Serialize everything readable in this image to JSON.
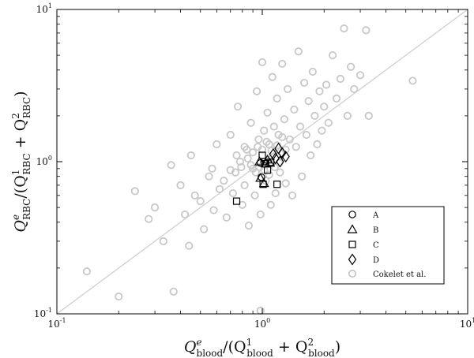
{
  "chart_data": {
    "type": "scatter",
    "x_scale": "log",
    "y_scale": "log",
    "xlim": [
      0.1,
      10
    ],
    "ylim": [
      0.1,
      10
    ],
    "grid": false,
    "legend_position": "bottom-right",
    "xlabel": {
      "main": "Q",
      "sup": "e",
      "sub": "blood",
      "rest_open": "/(Q",
      "sup1": "1",
      "sub1": "blood",
      "plus": " + Q",
      "sup2": "2",
      "sub2": "blood",
      "close": ")"
    },
    "ylabel": {
      "main": "Q",
      "sup": "e",
      "sub": "RBC",
      "rest_open": "/(Q",
      "sup1": "1",
      "sub1": "RBC",
      "plus": " + Q",
      "sup2": "2",
      "sub2": "RBC",
      "close": ")"
    },
    "x_ticks": [
      {
        "value": 0.1,
        "base": "10",
        "exp": "-1"
      },
      {
        "value": 1,
        "base": "10",
        "exp": "0"
      },
      {
        "value": 10,
        "base": "10",
        "exp": "1"
      }
    ],
    "y_ticks": [
      {
        "value": 0.1,
        "base": "10",
        "exp": "-1"
      },
      {
        "value": 1,
        "base": "10",
        "exp": "0"
      },
      {
        "value": 10,
        "base": "10",
        "exp": "1"
      }
    ],
    "reference_line": {
      "x": [
        0.1,
        10
      ],
      "y": [
        0.1,
        10
      ],
      "color": "#cfcfcf"
    },
    "series": [
      {
        "name": "A",
        "marker": "circle",
        "color": "#000000",
        "points": [
          [
            0.98,
            0.98
          ],
          [
            1.02,
            1.0
          ],
          [
            0.99,
            0.79
          ]
        ]
      },
      {
        "name": "B",
        "marker": "triangle",
        "color": "#000000",
        "points": [
          [
            0.97,
            1.0
          ],
          [
            1.04,
            0.97
          ],
          [
            1.09,
            0.98
          ],
          [
            0.98,
            0.78
          ],
          [
            1.02,
            0.72
          ],
          [
            1.06,
            1.03
          ]
        ]
      },
      {
        "name": "C",
        "marker": "square",
        "color": "#000000",
        "points": [
          [
            1.0,
            1.1
          ],
          [
            1.04,
            0.97
          ],
          [
            1.06,
            0.88
          ],
          [
            1.01,
            0.71
          ],
          [
            1.18,
            0.71
          ],
          [
            0.75,
            0.55
          ],
          [
            1.1,
            0.99
          ]
        ]
      },
      {
        "name": "D",
        "marker": "diamond",
        "color": "#000000",
        "points": [
          [
            1.2,
            1.22
          ],
          [
            1.25,
            1.14
          ],
          [
            1.3,
            1.08
          ],
          [
            1.16,
            1.05
          ],
          [
            1.22,
            1.0
          ],
          [
            1.13,
            1.12
          ]
        ]
      },
      {
        "name": "Cokelet et al.",
        "marker": "circle",
        "color": "#c8c8c8",
        "points": [
          [
            0.14,
            0.19
          ],
          [
            0.2,
            0.13
          ],
          [
            0.24,
            0.64
          ],
          [
            0.28,
            0.42
          ],
          [
            0.3,
            0.5
          ],
          [
            0.33,
            0.3
          ],
          [
            0.36,
            0.95
          ],
          [
            0.37,
            0.14
          ],
          [
            0.4,
            0.7
          ],
          [
            0.42,
            0.45
          ],
          [
            0.44,
            0.28
          ],
          [
            0.45,
            1.1
          ],
          [
            0.47,
            0.6
          ],
          [
            0.5,
            0.55
          ],
          [
            0.52,
            0.36
          ],
          [
            0.55,
            0.8
          ],
          [
            0.57,
            0.9
          ],
          [
            0.58,
            0.48
          ],
          [
            0.6,
            1.3
          ],
          [
            0.62,
            0.66
          ],
          [
            0.65,
            0.75
          ],
          [
            0.67,
            0.43
          ],
          [
            0.7,
            1.5
          ],
          [
            0.72,
            0.62
          ],
          [
            0.74,
            0.85
          ],
          [
            0.76,
            2.3
          ],
          [
            0.78,
            1.0
          ],
          [
            0.8,
            0.52
          ],
          [
            0.82,
            0.7
          ],
          [
            0.84,
            1.2
          ],
          [
            0.86,
            0.38
          ],
          [
            0.88,
            1.8
          ],
          [
            0.9,
            0.9
          ],
          [
            0.92,
            0.6
          ],
          [
            0.94,
            2.9
          ],
          [
            0.96,
            1.4
          ],
          [
            0.98,
            0.45
          ],
          [
            1.0,
            4.5
          ],
          [
            1.02,
            1.6
          ],
          [
            1.04,
            0.75
          ],
          [
            1.06,
            2.1
          ],
          [
            1.08,
            1.3
          ],
          [
            1.1,
            0.52
          ],
          [
            1.12,
            3.6
          ],
          [
            1.14,
            1.7
          ],
          [
            1.16,
            0.62
          ],
          [
            1.18,
            2.6
          ],
          [
            1.2,
            1.5
          ],
          [
            1.22,
            0.85
          ],
          [
            1.25,
            4.4
          ],
          [
            1.28,
            1.9
          ],
          [
            1.3,
            0.72
          ],
          [
            1.33,
            3.0
          ],
          [
            1.36,
            1.4
          ],
          [
            1.4,
            0.6
          ],
          [
            1.43,
            2.2
          ],
          [
            1.46,
            1.25
          ],
          [
            1.5,
            5.3
          ],
          [
            1.53,
            1.7
          ],
          [
            1.56,
            0.8
          ],
          [
            1.6,
            3.3
          ],
          [
            1.64,
            1.5
          ],
          [
            1.68,
            2.5
          ],
          [
            1.72,
            1.1
          ],
          [
            1.76,
            3.9
          ],
          [
            1.8,
            2.0
          ],
          [
            1.85,
            1.3
          ],
          [
            1.9,
            2.9
          ],
          [
            1.95,
            1.6
          ],
          [
            2.0,
            2.3
          ],
          [
            2.05,
            3.2
          ],
          [
            2.1,
            1.8
          ],
          [
            2.2,
            5.0
          ],
          [
            2.3,
            2.6
          ],
          [
            2.4,
            3.5
          ],
          [
            2.5,
            7.5
          ],
          [
            2.6,
            2.0
          ],
          [
            2.7,
            4.2
          ],
          [
            2.8,
            3.0
          ],
          [
            3.0,
            3.7
          ],
          [
            3.2,
            7.3
          ],
          [
            3.3,
            2.0
          ],
          [
            5.4,
            3.4
          ],
          [
            0.98,
            0.105
          ],
          [
            0.85,
            1.05
          ],
          [
            0.88,
            0.95
          ],
          [
            0.9,
            1.15
          ],
          [
            0.93,
            0.85
          ],
          [
            0.95,
            1.25
          ],
          [
            0.97,
            0.92
          ],
          [
            1.0,
            1.2
          ],
          [
            1.02,
            0.88
          ],
          [
            1.05,
            1.35
          ],
          [
            1.08,
            0.82
          ],
          [
            1.11,
            1.18
          ],
          [
            1.15,
            0.92
          ],
          [
            1.18,
            1.28
          ],
          [
            1.21,
            0.98
          ],
          [
            0.82,
            1.25
          ],
          [
            0.79,
            0.92
          ],
          [
            1.25,
            1.45
          ],
          [
            1.3,
            1.2
          ],
          [
            0.75,
            1.1
          ],
          [
            0.7,
            0.88
          ]
        ]
      }
    ]
  }
}
